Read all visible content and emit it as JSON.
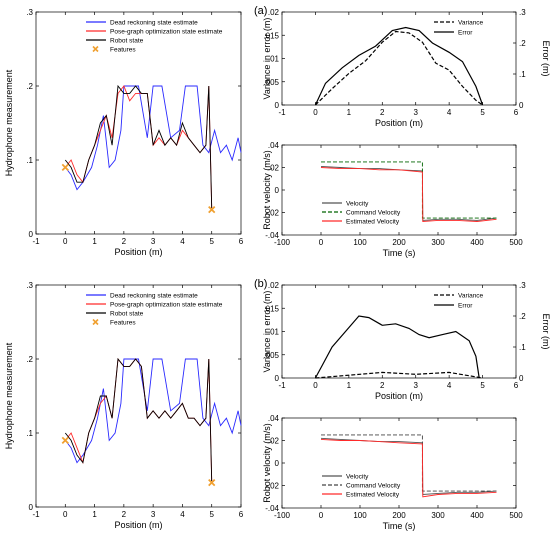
{
  "panel_labels": [
    "(a)",
    "(b)"
  ],
  "colors": {
    "dead_reckoning": "#2a2aff",
    "pose_graph": "#ff2a2a",
    "robot": "#000000",
    "features": "#f0a030",
    "command": "#006400"
  },
  "chart_data": [
    {
      "id": "a-hydro",
      "type": "line",
      "xlabel": "Position (m)",
      "ylabel": "Hydrophone measurement",
      "xlim": [
        -1,
        6
      ],
      "ylim": [
        0,
        0.3
      ],
      "xticks": [
        -1,
        0,
        1,
        2,
        3,
        4,
        5,
        6
      ],
      "yticks": [
        0,
        0.1,
        0.2,
        0.3
      ],
      "legend": [
        "Dead reckoning state estimate",
        "Pose-graph optimization state estimate",
        "Robot state",
        "Features"
      ],
      "series": [
        {
          "name": "Dead reckoning state estimate",
          "x": [
            0,
            0.2,
            0.4,
            0.6,
            0.9,
            1.1,
            1.3,
            1.5,
            1.7,
            1.9,
            2.0,
            2.2,
            2.5,
            2.8,
            3.0,
            3.3,
            3.6,
            3.9,
            4.1,
            4.3,
            4.5,
            4.7,
            4.9,
            5.1,
            5.3,
            5.5,
            5.7,
            5.9,
            6.0
          ],
          "y": [
            0.09,
            0.08,
            0.06,
            0.07,
            0.09,
            0.12,
            0.16,
            0.09,
            0.1,
            0.14,
            0.2,
            0.2,
            0.2,
            0.13,
            0.2,
            0.2,
            0.13,
            0.14,
            0.2,
            0.2,
            0.2,
            0.12,
            0.11,
            0.14,
            0.11,
            0.12,
            0.1,
            0.13,
            0.11
          ]
        },
        {
          "name": "Pose-graph optimization state estimate",
          "x": [
            0,
            0.2,
            0.4,
            0.6,
            0.8,
            1.0,
            1.2,
            1.4,
            1.6,
            1.8,
            2.0,
            2.2,
            2.4,
            2.6,
            2.8,
            3.0,
            3.2,
            3.4,
            3.6,
            3.8,
            4.0,
            4.2,
            4.4,
            4.6,
            4.8,
            4.9,
            5.0
          ],
          "y": [
            0.09,
            0.1,
            0.08,
            0.07,
            0.1,
            0.12,
            0.14,
            0.16,
            0.13,
            0.19,
            0.2,
            0.18,
            0.19,
            0.19,
            0.19,
            0.12,
            0.13,
            0.12,
            0.13,
            0.12,
            0.14,
            0.13,
            0.12,
            0.11,
            0.12,
            0.2,
            0.035
          ]
        },
        {
          "name": "Robot state",
          "x": [
            0,
            0.2,
            0.4,
            0.6,
            0.8,
            1.0,
            1.2,
            1.4,
            1.6,
            1.8,
            2.0,
            2.2,
            2.4,
            2.6,
            2.8,
            3.0,
            3.2,
            3.4,
            3.6,
            3.8,
            4.0,
            4.2,
            4.4,
            4.6,
            4.8,
            4.9,
            5.0
          ],
          "y": [
            0.1,
            0.09,
            0.07,
            0.07,
            0.1,
            0.12,
            0.15,
            0.16,
            0.12,
            0.2,
            0.19,
            0.19,
            0.2,
            0.19,
            0.19,
            0.12,
            0.14,
            0.12,
            0.13,
            0.12,
            0.15,
            0.13,
            0.12,
            0.11,
            0.12,
            0.2,
            0.035
          ]
        }
      ],
      "features": {
        "name": "Features",
        "x": [
          0,
          5
        ],
        "y": [
          0.09,
          0.033
        ]
      }
    },
    {
      "id": "a-var",
      "type": "line",
      "xlabel": "Position (m)",
      "ylabel": "Variance in error (m)",
      "ylabel_right": "Error (m)",
      "xlim": [
        -1,
        6
      ],
      "ylim": [
        0,
        0.02
      ],
      "ylim_right": [
        0,
        0.3
      ],
      "xticks": [
        -1,
        0,
        1,
        2,
        3,
        4,
        5,
        6
      ],
      "yticks": [
        0,
        0.005,
        0.01,
        0.015,
        0.02
      ],
      "yticks_right": [
        0,
        0.1,
        0.2,
        0.3
      ],
      "legend": [
        "Variance",
        "Error"
      ],
      "series": [
        {
          "name": "Variance",
          "axis": "left",
          "x": [
            0,
            0.5,
            1.0,
            1.5,
            2.0,
            2.4,
            2.8,
            3.2,
            3.6,
            4.0,
            4.4,
            4.8,
            5.0
          ],
          "y": [
            0,
            0.0035,
            0.0068,
            0.0095,
            0.0135,
            0.0158,
            0.0155,
            0.0135,
            0.009,
            0.0075,
            0.004,
            0.001,
            0
          ]
        },
        {
          "name": "Error",
          "axis": "right",
          "x": [
            0,
            0.3,
            0.8,
            1.3,
            1.8,
            2.3,
            2.7,
            3.1,
            3.5,
            4.0,
            4.4,
            4.8,
            5.0
          ],
          "y": [
            0,
            0.07,
            0.12,
            0.16,
            0.19,
            0.24,
            0.25,
            0.24,
            0.2,
            0.17,
            0.14,
            0.06,
            0
          ]
        }
      ]
    },
    {
      "id": "a-vel",
      "type": "line",
      "xlabel": "Time (s)",
      "ylabel": "Robot velocity (m/s)",
      "xlim": [
        -100,
        500
      ],
      "ylim": [
        -0.04,
        0.04
      ],
      "xticks": [
        -100,
        0,
        100,
        200,
        300,
        400,
        500
      ],
      "yticks": [
        -0.04,
        -0.02,
        0,
        0.02,
        0.04
      ],
      "legend": [
        "Velocity",
        "Command Velocity",
        "Estimated Velocity"
      ],
      "series": [
        {
          "name": "Velocity",
          "x": [
            0,
            50,
            100,
            150,
            200,
            260,
            261,
            300,
            350,
            400,
            450
          ],
          "y": [
            0.021,
            0.02,
            0.019,
            0.019,
            0.018,
            0.017,
            -0.027,
            -0.026,
            -0.026,
            -0.027,
            -0.025
          ]
        },
        {
          "name": "Command Velocity",
          "x": [
            0,
            260,
            260,
            450
          ],
          "y": [
            0.025,
            0.025,
            -0.025,
            -0.025
          ]
        },
        {
          "name": "Estimated Velocity",
          "x": [
            0,
            50,
            100,
            150,
            200,
            260,
            261,
            300,
            350,
            400,
            450
          ],
          "y": [
            0.02,
            0.019,
            0.019,
            0.018,
            0.018,
            0.016,
            -0.028,
            -0.027,
            -0.027,
            -0.028,
            -0.026
          ]
        }
      ]
    },
    {
      "id": "b-hydro",
      "type": "line",
      "xlabel": "Position (m)",
      "ylabel": "Hydrophone measurement",
      "xlim": [
        -1,
        6
      ],
      "ylim": [
        0,
        0.3
      ],
      "xticks": [
        -1,
        0,
        1,
        2,
        3,
        4,
        5,
        6
      ],
      "yticks": [
        0,
        0.1,
        0.2,
        0.3
      ],
      "legend": [
        "Dead reckoning state estimate",
        "Pose-graph optimization state estimate",
        "Robot state",
        "Features"
      ],
      "series": [
        {
          "name": "Dead reckoning state estimate",
          "x": [
            0,
            0.2,
            0.4,
            0.6,
            0.9,
            1.1,
            1.3,
            1.5,
            1.7,
            1.9,
            2.0,
            2.2,
            2.5,
            2.8,
            3.0,
            3.3,
            3.6,
            3.9,
            4.1,
            4.3,
            4.5,
            4.7,
            4.9,
            5.1,
            5.3,
            5.5,
            5.7,
            5.9,
            6.0
          ],
          "y": [
            0.09,
            0.08,
            0.06,
            0.07,
            0.09,
            0.12,
            0.16,
            0.09,
            0.1,
            0.14,
            0.2,
            0.2,
            0.2,
            0.13,
            0.2,
            0.2,
            0.13,
            0.14,
            0.2,
            0.2,
            0.2,
            0.12,
            0.11,
            0.14,
            0.11,
            0.12,
            0.1,
            0.13,
            0.11
          ]
        },
        {
          "name": "Pose-graph optimization state estimate",
          "x": [
            0,
            0.2,
            0.4,
            0.6,
            0.8,
            1.0,
            1.2,
            1.4,
            1.6,
            1.8,
            2.0,
            2.2,
            2.4,
            2.6,
            2.8,
            3.0,
            3.2,
            3.4,
            3.6,
            3.8,
            4.0,
            4.2,
            4.4,
            4.6,
            4.8,
            4.9,
            5.0
          ],
          "y": [
            0.09,
            0.1,
            0.08,
            0.06,
            0.1,
            0.12,
            0.14,
            0.15,
            0.12,
            0.2,
            0.19,
            0.19,
            0.2,
            0.19,
            0.12,
            0.13,
            0.12,
            0.13,
            0.12,
            0.13,
            0.14,
            0.12,
            0.12,
            0.11,
            0.12,
            0.2,
            0.035
          ]
        },
        {
          "name": "Robot state",
          "x": [
            0,
            0.2,
            0.4,
            0.6,
            0.8,
            1.0,
            1.2,
            1.4,
            1.6,
            1.8,
            2.0,
            2.2,
            2.4,
            2.6,
            2.8,
            3.0,
            3.2,
            3.4,
            3.6,
            3.8,
            4.0,
            4.2,
            4.4,
            4.6,
            4.8,
            4.9,
            5.0
          ],
          "y": [
            0.1,
            0.09,
            0.07,
            0.06,
            0.1,
            0.12,
            0.15,
            0.15,
            0.12,
            0.2,
            0.19,
            0.19,
            0.2,
            0.19,
            0.12,
            0.13,
            0.12,
            0.13,
            0.12,
            0.13,
            0.14,
            0.12,
            0.12,
            0.11,
            0.12,
            0.2,
            0.035
          ]
        }
      ],
      "features": {
        "name": "Features",
        "x": [
          0,
          5
        ],
        "y": [
          0.09,
          0.033
        ]
      }
    },
    {
      "id": "b-var",
      "type": "line",
      "xlabel": "Position (m)",
      "ylabel": "Variance in error (m)",
      "ylabel_right": "Error (m)",
      "xlim": [
        -1,
        6
      ],
      "ylim": [
        0,
        0.02
      ],
      "ylim_right": [
        0,
        0.3
      ],
      "xticks": [
        -1,
        0,
        1,
        2,
        3,
        4,
        5,
        6
      ],
      "yticks": [
        0,
        0.005,
        0.01,
        0.015,
        0.02
      ],
      "yticks_right": [
        0,
        0.1,
        0.2,
        0.3
      ],
      "legend": [
        "Variance",
        "Error"
      ],
      "series": [
        {
          "name": "Variance",
          "axis": "left",
          "x": [
            0,
            1,
            2,
            3,
            4,
            5
          ],
          "y": [
            0,
            0.0006,
            0.0012,
            0.0008,
            0.0012,
            0
          ]
        },
        {
          "name": "Error",
          "axis": "right",
          "x": [
            0,
            0.2,
            0.5,
            0.9,
            1.3,
            1.6,
            2.0,
            2.4,
            2.8,
            3.1,
            3.4,
            3.8,
            4.2,
            4.6,
            4.8,
            4.9
          ],
          "y": [
            0,
            0.04,
            0.1,
            0.15,
            0.2,
            0.195,
            0.17,
            0.175,
            0.16,
            0.14,
            0.13,
            0.14,
            0.15,
            0.12,
            0.07,
            0
          ]
        }
      ]
    },
    {
      "id": "b-vel",
      "type": "line",
      "xlabel": "Time (s)",
      "ylabel": "Robot velocity (m/s)",
      "xlim": [
        -100,
        500
      ],
      "ylim": [
        -0.04,
        0.04
      ],
      "xticks": [
        -100,
        0,
        100,
        200,
        300,
        400,
        500
      ],
      "yticks": [
        -0.04,
        -0.02,
        0,
        0.02,
        0.04
      ],
      "legend": [
        "Velocity",
        "Command Velocity",
        "Estimated Velocity"
      ],
      "series": [
        {
          "name": "Velocity",
          "x": [
            0,
            50,
            100,
            150,
            200,
            260,
            261,
            300,
            350,
            400,
            450
          ],
          "y": [
            0.022,
            0.021,
            0.02,
            0.019,
            0.019,
            0.018,
            -0.028,
            -0.027,
            -0.026,
            -0.026,
            -0.025
          ]
        },
        {
          "name": "Command Velocity",
          "x": [
            0,
            260,
            260,
            450
          ],
          "y": [
            0.025,
            0.025,
            -0.025,
            -0.025
          ]
        },
        {
          "name": "Estimated Velocity",
          "x": [
            0,
            50,
            100,
            150,
            200,
            260,
            261,
            300,
            350,
            400,
            450
          ],
          "y": [
            0.021,
            0.02,
            0.02,
            0.019,
            0.018,
            0.017,
            -0.03,
            -0.028,
            -0.027,
            -0.027,
            -0.026
          ]
        }
      ]
    }
  ]
}
